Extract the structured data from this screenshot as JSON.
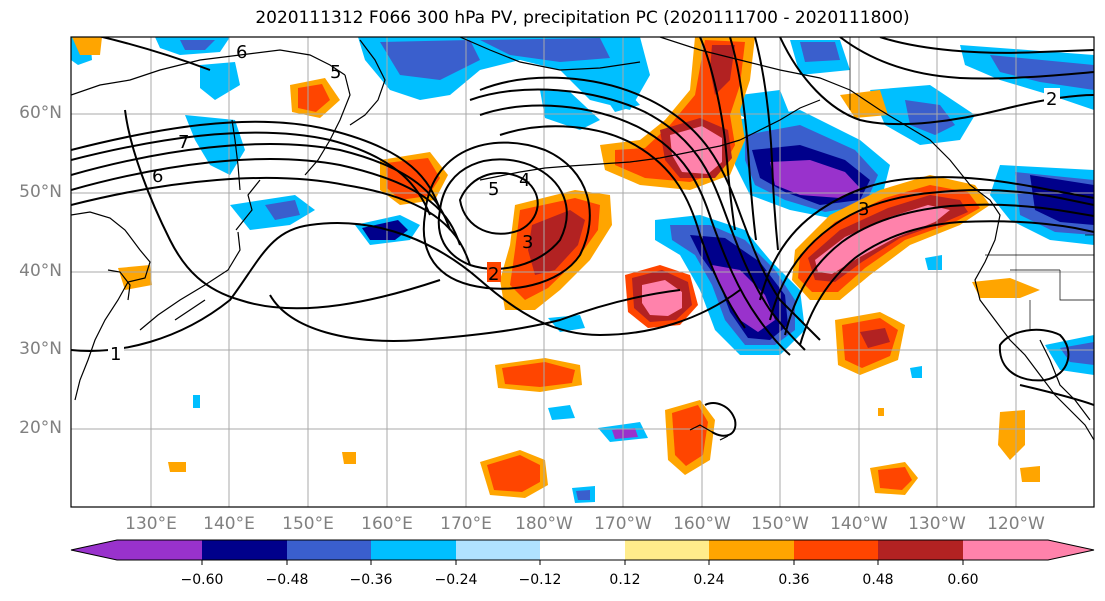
{
  "title": "2020111312 F066 300 hPa PV, precipitation PC (2020111700 - 2020111800)",
  "latitude_labels": [
    "60°N",
    "50°N",
    "40°N",
    "30°N",
    "20°N"
  ],
  "longitude_labels": [
    "130°E",
    "140°E",
    "150°E",
    "160°E",
    "170°E",
    "180°W",
    "170°W",
    "160°W",
    "150°W",
    "140°W",
    "130°W",
    "120°W"
  ],
  "colorbar": {
    "ticks": [
      "−0.60",
      "−0.48",
      "−0.36",
      "−0.24",
      "−0.12",
      "0.12",
      "0.24",
      "0.36",
      "0.48",
      "0.60"
    ],
    "colors": [
      "#9932cc",
      "#00008b",
      "#3a5fcd",
      "#00bfff",
      "#b0e2ff",
      "#ffffff",
      "#ffec8b",
      "#ffa500",
      "#ff4500",
      "#b22222",
      "#ff82ab"
    ]
  },
  "pv_contour_labels": [
    "1",
    "2",
    "3",
    "4",
    "5",
    "6",
    "7"
  ],
  "colors": {
    "land_lines": "#000000",
    "grid": "#a9a9a9",
    "axis_labels": "#808080"
  }
}
